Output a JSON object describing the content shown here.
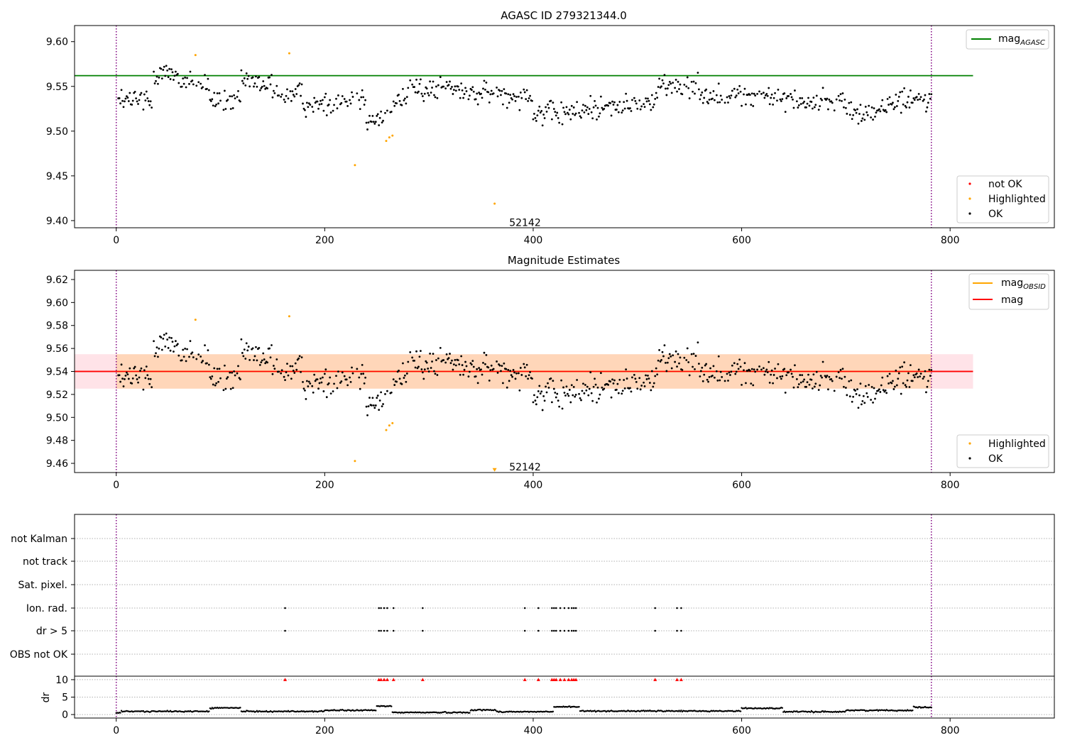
{
  "chart_data": [
    {
      "type": "scatter",
      "title": "AGASC ID 279321344.0",
      "xlim": [
        -40,
        900
      ],
      "ylim": [
        9.392,
        9.618
      ],
      "xticks": [
        0,
        200,
        400,
        600,
        800
      ],
      "yticks": [
        9.4,
        9.45,
        9.5,
        9.55,
        9.6
      ],
      "ytick_labels": [
        "9.40",
        "9.45",
        "9.50",
        "9.55",
        "9.60"
      ],
      "vlines": [
        0,
        782
      ],
      "mag_agasc": 9.562,
      "mag_line_range": [
        -40,
        822
      ],
      "annotation": {
        "text": "52142",
        "x": 392,
        "y": 9.398
      },
      "highlighted_points": [
        {
          "x": 76,
          "y": 9.585
        },
        {
          "x": 166,
          "y": 9.587
        },
        {
          "x": 229,
          "y": 9.462
        },
        {
          "x": 259,
          "y": 9.489
        },
        {
          "x": 262,
          "y": 9.493
        },
        {
          "x": 265,
          "y": 9.495
        },
        {
          "x": 363,
          "y": 9.419
        }
      ],
      "legend_top": [
        {
          "name": "mag",
          "subscript": "AGASC",
          "color": "#008000"
        }
      ],
      "legend_bottom": [
        {
          "name": "not OK",
          "color": "#ff0000"
        },
        {
          "name": "Highlighted",
          "color": "#ffa500"
        },
        {
          "name": "OK",
          "color": "#000000"
        }
      ]
    },
    {
      "type": "scatter",
      "title": "Magnitude Estimates",
      "xlim": [
        -40,
        900
      ],
      "ylim": [
        9.452,
        9.628
      ],
      "xticks": [
        0,
        200,
        400,
        600,
        800
      ],
      "yticks": [
        9.46,
        9.48,
        9.5,
        9.52,
        9.54,
        9.56,
        9.58,
        9.6,
        9.62
      ],
      "ytick_labels": [
        "9.46",
        "9.48",
        "9.50",
        "9.52",
        "9.54",
        "9.56",
        "9.58",
        "9.60",
        "9.62"
      ],
      "vlines": [
        0,
        782
      ],
      "mag": 9.54,
      "band": [
        9.525,
        9.555
      ],
      "band_range": [
        -40,
        822
      ],
      "annotation": {
        "text": "52142",
        "x": 392,
        "y": 9.457
      },
      "highlighted_points": [
        {
          "x": 76,
          "y": 9.585
        },
        {
          "x": 166,
          "y": 9.588
        },
        {
          "x": 229,
          "y": 9.462
        },
        {
          "x": 259,
          "y": 9.489
        },
        {
          "x": 262,
          "y": 9.493
        },
        {
          "x": 265,
          "y": 9.495
        },
        {
          "x": 363,
          "y": 9.454
        }
      ],
      "legend_top": [
        {
          "name": "mag",
          "subscript": "OBSID",
          "color": "#ffa500"
        },
        {
          "name": "mag",
          "subscript": "",
          "color": "#ff0000"
        }
      ],
      "legend_bottom": [
        {
          "name": "Highlighted",
          "color": "#ffa500"
        },
        {
          "name": "OK",
          "color": "#000000"
        }
      ]
    },
    {
      "type": "scatter",
      "title": "",
      "xlim": [
        -40,
        900
      ],
      "xticks": [
        0,
        200,
        400,
        600,
        800
      ],
      "vlines": [
        0,
        782
      ],
      "flag_categories": [
        "not Kalman",
        "not track",
        "Sat. pixel.",
        "Ion. rad.",
        "dr > 5",
        "OBS not OK"
      ],
      "flag_points": {
        "Ion. rad.": [
          162,
          252,
          254,
          257,
          260,
          266,
          294,
          392,
          405,
          418,
          420,
          422,
          426,
          430,
          434,
          437,
          439,
          441,
          517,
          538,
          542
        ],
        "dr > 5": [
          162,
          252,
          254,
          257,
          260,
          266,
          294,
          392,
          405,
          418,
          420,
          422,
          426,
          430,
          434,
          437,
          439,
          441,
          517,
          538,
          542
        ]
      },
      "dr_ylabel": "dr",
      "dr_yticks": [
        0,
        5,
        10
      ],
      "dr_ylim": [
        -1,
        11
      ],
      "dr_capped_points": [
        162,
        252,
        254,
        257,
        260,
        266,
        294,
        392,
        405,
        418,
        420,
        422,
        426,
        430,
        434,
        437,
        439,
        441,
        517,
        538,
        542
      ]
    }
  ]
}
